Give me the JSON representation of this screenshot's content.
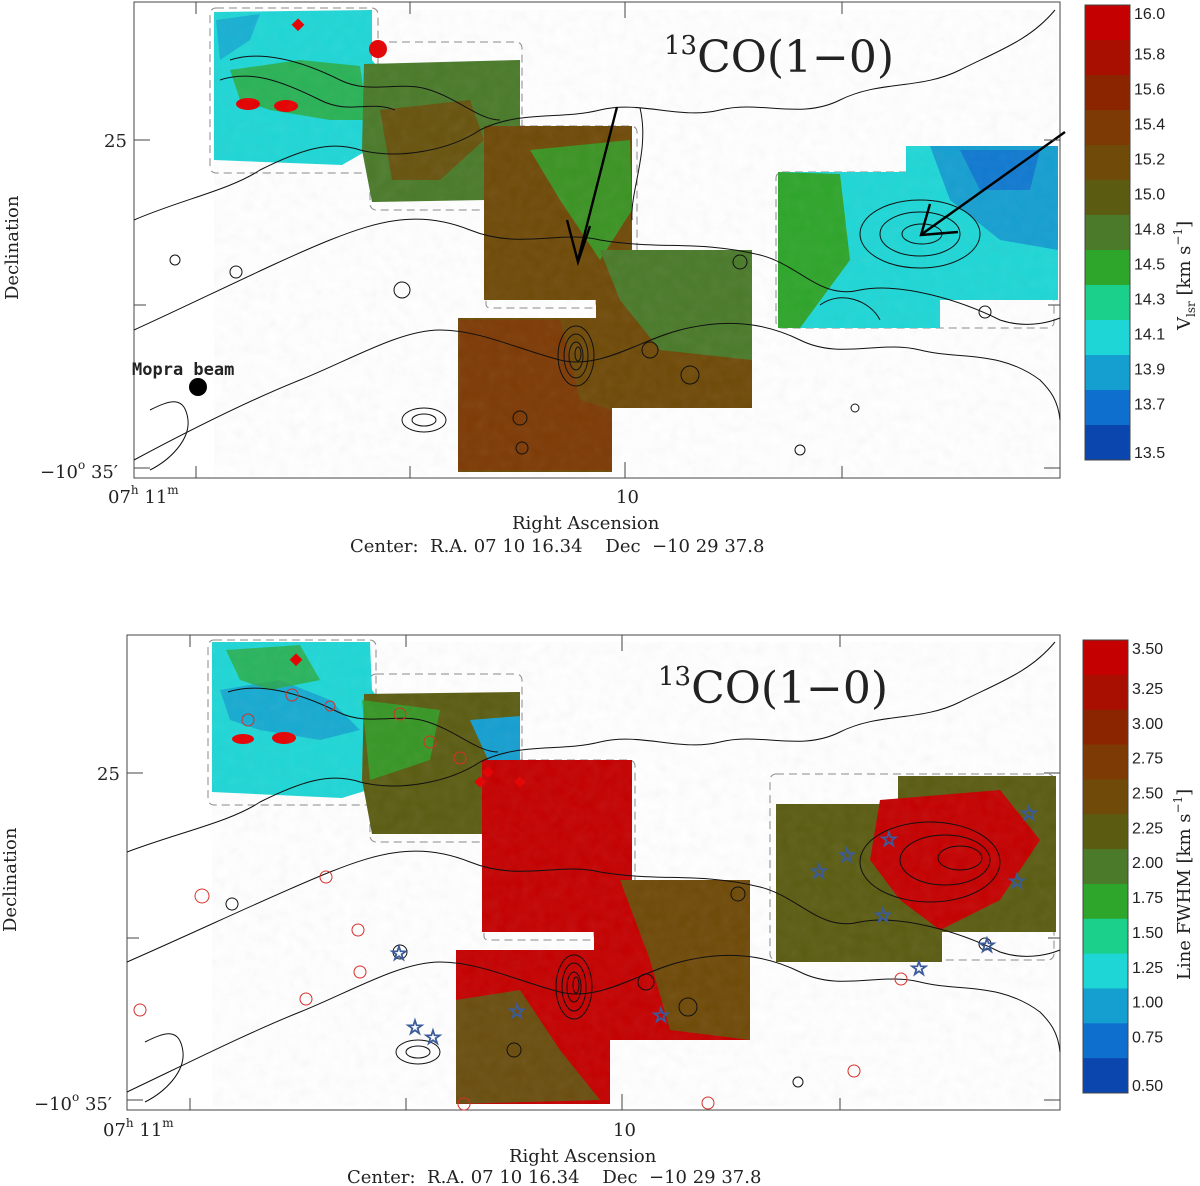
{
  "panels": [
    {
      "title_sup": "13",
      "title_main": "CO(1−0)",
      "xlabel": "Right Ascension",
      "ylabel": "Declination",
      "center_text": "Center:  R.A. 07 10 16.34    Dec  −10 29 37.8",
      "xtick_ra_h": "07",
      "xtick_ra_m": "11",
      "xtick_mid": "10",
      "ytick_25": "25",
      "ytick_35_deg": "−10",
      "ytick_35_min": "35′",
      "beam_label": "Mopra beam",
      "colorbar_label": "V_lsr [km s^-1]",
      "colorbar_label_main": "V",
      "colorbar_label_sub": "lsr",
      "colorbar_label_unit": " [km s",
      "colorbar_label_exp": "−1",
      "colorbar_label_close": "]",
      "colorbar_ticks": [
        "16.0",
        "15.8",
        "15.6",
        "15.4",
        "15.2",
        "15.0",
        "14.8",
        "14.5",
        "14.3",
        "14.1",
        "13.9",
        "13.7",
        "13.5"
      ],
      "colorbar_colors": [
        "#c40000",
        "#a80f00",
        "#8b2500",
        "#7d3a05",
        "#6f4a08",
        "#5b5c12",
        "#4a7a2a",
        "#2ea52b",
        "#1ad08a",
        "#1fd6d6",
        "#159fd0",
        "#0f6fcf",
        "#0b46ae"
      ]
    },
    {
      "title_sup": "13",
      "title_main": "CO(1−0)",
      "xlabel": "Right Ascension",
      "ylabel": "Declination",
      "center_text": "Center:  R.A. 07 10 16.34    Dec  −10 29 37.8",
      "xtick_ra_h": "07",
      "xtick_ra_m": "11",
      "xtick_mid": "10",
      "ytick_25": "25",
      "ytick_35_deg": "−10",
      "ytick_35_min": "35′",
      "colorbar_label": "Line FWHM [km s^-1]",
      "colorbar_label_main": "Line FWHM [km s",
      "colorbar_label_exp": "−1",
      "colorbar_label_close": "]",
      "colorbar_ticks": [
        "3.50",
        "3.25",
        "3.00",
        "2.75",
        "2.50",
        "2.25",
        "2.00",
        "1.75",
        "1.50",
        "1.25",
        "1.00",
        "0.75",
        "0.50"
      ],
      "colorbar_colors": [
        "#c40000",
        "#a80f00",
        "#8b2500",
        "#7d3a05",
        "#6f4a08",
        "#5b5c12",
        "#4a7a2a",
        "#2ea52b",
        "#1ad08a",
        "#1fd6d6",
        "#159fd0",
        "#0f6fcf",
        "#0b46ae"
      ]
    }
  ],
  "chart_data": [
    {
      "type": "heatmap",
      "title": "13CO(1−0)",
      "xlabel": "Right Ascension",
      "ylabel": "Declination",
      "x_ticks": [
        "07h 11m",
        "10"
      ],
      "y_ticks": [
        "25",
        "−10° 35′"
      ],
      "colorbar": {
        "label": "V_lsr [km s^-1]",
        "ticks": [
          16.0,
          15.8,
          15.6,
          15.4,
          15.2,
          15.0,
          14.8,
          14.5,
          14.3,
          14.1,
          13.9,
          13.7,
          13.5
        ],
        "range": [
          13.5,
          16.0
        ]
      },
      "annotations": [
        "Mopra beam",
        "Center:  R.A. 07 10 16.34    Dec  −10 29 37.8"
      ]
    },
    {
      "type": "heatmap",
      "title": "13CO(1−0)",
      "xlabel": "Right Ascension",
      "ylabel": "Declination",
      "x_ticks": [
        "07h 11m",
        "10"
      ],
      "y_ticks": [
        "25",
        "−10° 35′"
      ],
      "colorbar": {
        "label": "Line FWHM [km s^-1]",
        "ticks": [
          3.5,
          3.25,
          3.0,
          2.75,
          2.5,
          2.25,
          2.0,
          1.75,
          1.5,
          1.25,
          1.0,
          0.75,
          0.5
        ],
        "range": [
          0.5,
          3.5
        ]
      },
      "annotations": [
        "Center:  R.A. 07 10 16.34    Dec  −10 29 37.8"
      ]
    }
  ]
}
